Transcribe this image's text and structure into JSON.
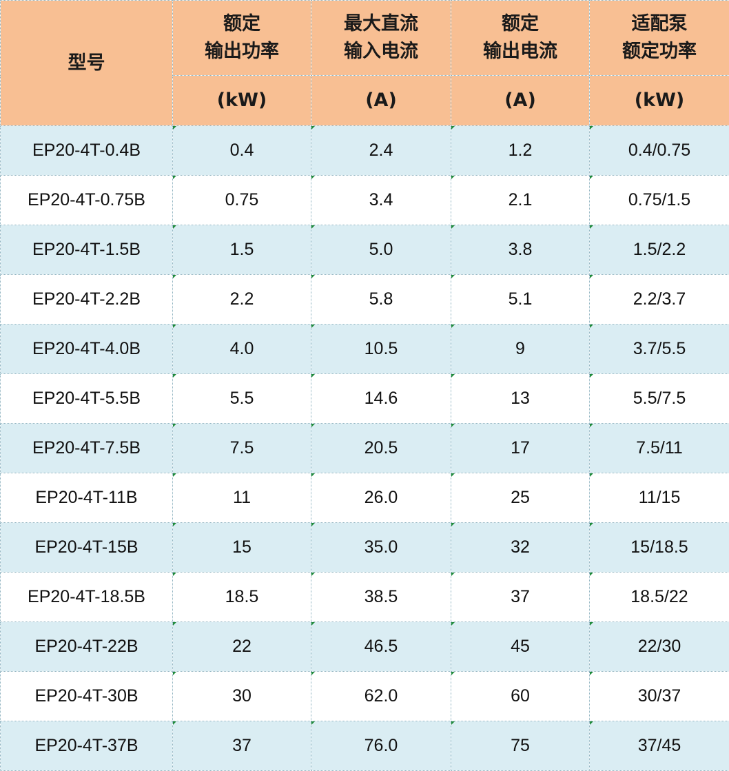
{
  "header": {
    "model": "型号",
    "rated_output_power": [
      "额定",
      "输出功率"
    ],
    "max_dc_input_current": [
      "最大直流",
      "输入电流"
    ],
    "rated_output_current": [
      "额定",
      "输出电流"
    ],
    "pump_rated_power": [
      "适配泵",
      "额定功率"
    ],
    "units": [
      "(kW)",
      "(A)",
      "(A)",
      "(kW)"
    ]
  },
  "rows": [
    [
      "EP20-4T-0.4B",
      "0.4",
      "2.4",
      "1.2",
      "0.4/0.75"
    ],
    [
      "EP20-4T-0.75B",
      "0.75",
      "3.4",
      "2.1",
      "0.75/1.5"
    ],
    [
      "EP20-4T-1.5B",
      "1.5",
      "5.0",
      "3.8",
      "1.5/2.2"
    ],
    [
      "EP20-4T-2.2B",
      "2.2",
      "5.8",
      "5.1",
      "2.2/3.7"
    ],
    [
      "EP20-4T-4.0B",
      "4.0",
      "10.5",
      "9",
      "3.7/5.5"
    ],
    [
      "EP20-4T-5.5B",
      "5.5",
      "14.6",
      "13",
      "5.5/7.5"
    ],
    [
      "EP20-4T-7.5B",
      "7.5",
      "20.5",
      "17",
      "7.5/11"
    ],
    [
      "EP20-4T-11B",
      "11",
      "26.0",
      "25",
      "11/15"
    ],
    [
      "EP20-4T-15B",
      "15",
      "35.0",
      "32",
      "15/18.5"
    ],
    [
      "EP20-4T-18.5B",
      "18.5",
      "38.5",
      "37",
      "18.5/22"
    ],
    [
      "EP20-4T-22B",
      "22",
      "46.5",
      "45",
      "22/30"
    ],
    [
      "EP20-4T-30B",
      "30",
      "62.0",
      "60",
      "30/37"
    ],
    [
      "EP20-4T-37B",
      "37",
      "76.0",
      "75",
      "37/45"
    ]
  ],
  "colors": {
    "header_bg": "#f8bf93",
    "row_alt_bg": "#daedf3",
    "row_bg": "#ffffff",
    "marker": "#1e8a3a"
  }
}
